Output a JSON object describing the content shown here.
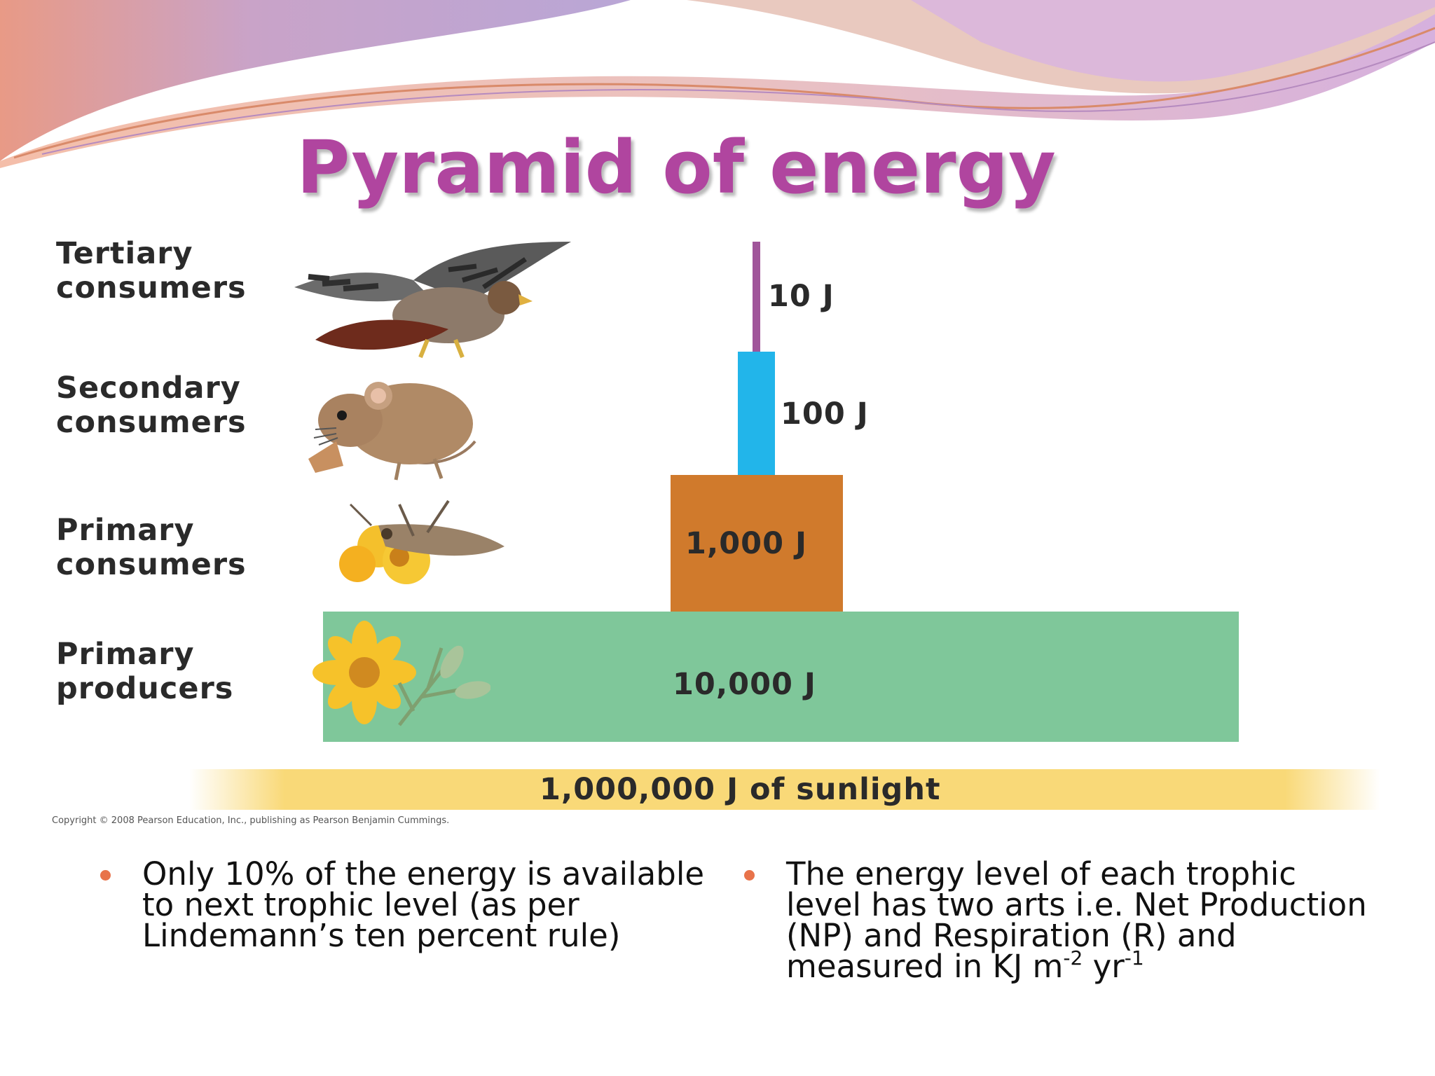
{
  "title": "Pyramid of energy",
  "levels": [
    {
      "label_line1": "Tertiary",
      "label_line2": "consumers",
      "icon": "hawk-icon",
      "energy": "10 J",
      "color": "#a0559a"
    },
    {
      "label_line1": "Secondary",
      "label_line2": "consumers",
      "icon": "mouse-icon",
      "energy": "100 J",
      "color": "#22b5ea"
    },
    {
      "label_line1": "Primary",
      "label_line2": "consumers",
      "icon": "grasshopper-icon",
      "energy": "1,000 J",
      "color": "#d07a2c"
    },
    {
      "label_line1": "Primary",
      "label_line2": "producers",
      "icon": "flower-icon",
      "energy": "10,000 J",
      "color": "#7fc79a"
    }
  ],
  "sunlight": {
    "label": "1,000,000 J of sunlight",
    "color": "#f9d978"
  },
  "copyright": "Copyright © 2008 Pearson Education, Inc., publishing as Pearson Benjamin Cummings.",
  "bullets": [
    {
      "text": "Only 10% of the energy is available to next trophic level (as per Lindemann’s ten percent rule)"
    },
    {
      "text_main": "The energy level of each trophic level has two arts i.e. Net Production (NP) and Respiration (R) and measured in KJ m",
      "sup1": "-2",
      "mid": " yr",
      "sup2": "-1"
    }
  ],
  "colors": {
    "title": "#b0459f",
    "bullet": "#e8734a"
  }
}
